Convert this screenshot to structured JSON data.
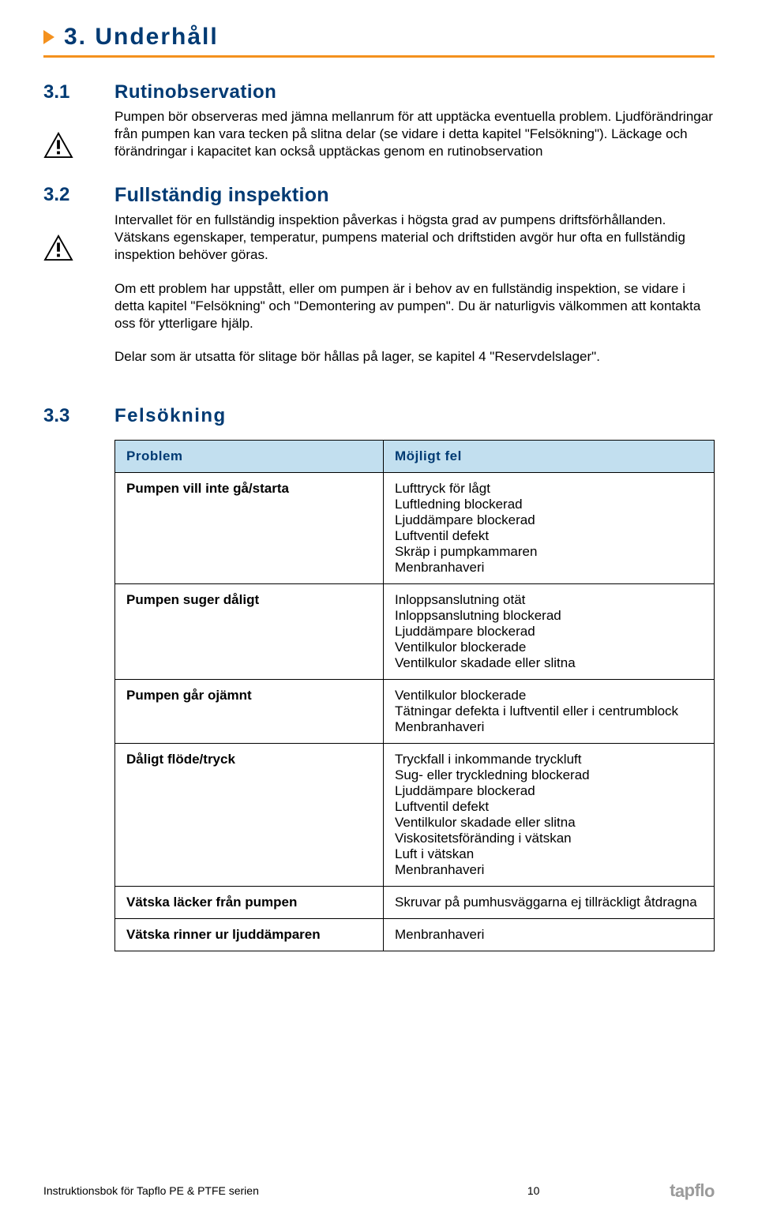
{
  "chapter": {
    "title": "3. Underhåll"
  },
  "sections": {
    "s31": {
      "num": "3.1",
      "heading": "Rutinobservation",
      "para1": "Pumpen bör observeras med jämna mellanrum för att upptäcka eventuella problem. Ljud­förändringar från pumpen kan vara tecken på slitna delar (se vidare i detta kapitel \"Felsökning\"). Läckage och förändringar i kapacitet kan också upptäckas genom en rutinobservation"
    },
    "s32": {
      "num": "3.2",
      "heading": "Fullständig inspektion",
      "para1": "Intervallet för en fullständig inspektion påverkas i högsta grad av pumpens driftsförhållanden. Vätskans egenskaper, temperatur, pumpens material och driftstiden avgör hur ofta en fullständig inspektion behöver göras.",
      "para2": "Om ett problem har uppstått, eller om pumpen är i behov av en fullständig inspektion, se vidare i detta kapitel \"Felsökning\" och \"Demontering av pumpen\". Du är naturligvis välkommen att kontakta oss för ytterligare hjälp.",
      "para3": "Delar som är utsatta för slitage bör hållas på lager, se kapitel 4 \"Reservdelslager\"."
    },
    "s33": {
      "num": "3.3",
      "heading": "Felsökning"
    }
  },
  "table": {
    "header": {
      "col1": "Problem",
      "col2": "Möjligt fel"
    },
    "rows": [
      {
        "problem": "Pumpen vill inte gå/starta",
        "faults": [
          "Lufttryck för lågt",
          "Luftledning blockerad",
          "Ljuddämpare blockerad",
          "Luftventil defekt",
          "Skräp i pumpkammaren",
          "Menbranhaveri"
        ]
      },
      {
        "problem": "Pumpen suger dåligt",
        "faults": [
          "Inloppsanslutning otät",
          "Inloppsanslutning blockerad",
          "Ljuddämpare blockerad",
          "Ventilkulor blockerade",
          "Ventilkulor skadade eller slitna"
        ]
      },
      {
        "problem": "Pumpen går ojämnt",
        "faults": [
          "Ventilkulor blockerade",
          "Tätningar defekta i luftventil eller i centrumblock",
          "Menbranhaveri"
        ]
      },
      {
        "problem": "Dåligt flöde/tryck",
        "faults": [
          "Tryckfall i inkommande tryckluft",
          "Sug- eller tryckledning blockerad",
          "Ljuddämpare blockerad",
          "Luftventil defekt",
          "Ventilkulor skadade eller slitna",
          "Viskositetsföränding i vätskan",
          "Luft i vätskan",
          "Menbranhaveri"
        ]
      },
      {
        "problem": "Vätska läcker från pumpen",
        "faults": [
          "Skruvar på pumhusväggarna ej tillräckligt åtdragna"
        ]
      },
      {
        "problem": "Vätska rinner ur ljuddämparen",
        "faults": [
          "Menbranhaveri"
        ]
      }
    ]
  },
  "footer": {
    "doc_title": "Instruktionsbok för Tapflo PE & PTFE serien",
    "page_num": "10",
    "logo_text": "tapflo"
  },
  "colors": {
    "heading": "#003a73",
    "accent": "#f4911e",
    "table_header_bg": "#c2dfef"
  }
}
